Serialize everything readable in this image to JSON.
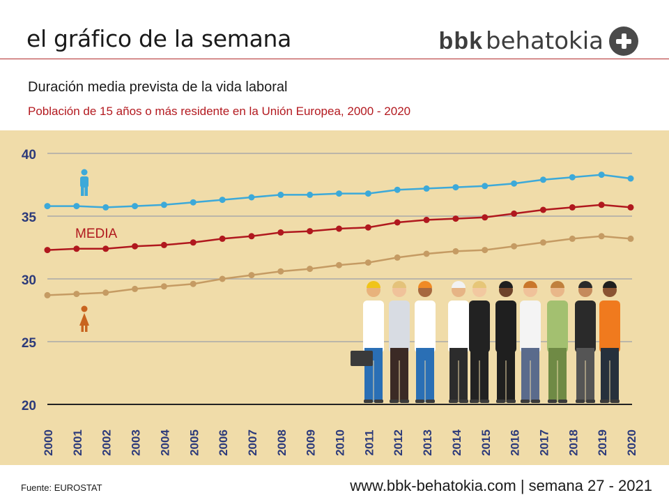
{
  "header": {
    "title": "el gráfico de la semana",
    "brand_bold": "bbk",
    "brand_light": "behatokia"
  },
  "subtitle": "Duración media prevista de la vida laboral",
  "subtitle2": "Población de 15 años o más residente en la Unión Europea, 2000 - 2020",
  "footer": {
    "source": "Fuente:  EUROSTAT",
    "site": "www.bbk-behatokia.com | semana 27 - 2021"
  },
  "colors": {
    "men": "#3ca9d9",
    "media": "#b0181e",
    "women": "#c59b63",
    "axis_labels": "#2c3a7a",
    "grid": "#a9a9a9",
    "background": "#f0dca9"
  },
  "chart_data": {
    "type": "line",
    "title": "Duración media prevista de la vida laboral",
    "xlabel": "",
    "ylabel": "",
    "ylim": [
      20,
      40
    ],
    "yticks": [
      20,
      25,
      30,
      35,
      40
    ],
    "grid": true,
    "annotation": "MEDIA",
    "categories": [
      "2000",
      "2001",
      "2002",
      "2003",
      "2004",
      "2005",
      "2006",
      "2007",
      "2008",
      "2009",
      "2010",
      "2011",
      "2012",
      "2013",
      "2014",
      "2015",
      "2016",
      "2017",
      "2018",
      "2019",
      "2020"
    ],
    "series": [
      {
        "name": "Hombres",
        "icon": "man-icon",
        "color": "#3ca9d9",
        "values": [
          35.8,
          35.8,
          35.7,
          35.8,
          35.9,
          36.1,
          36.3,
          36.5,
          36.7,
          36.7,
          36.8,
          36.8,
          37.1,
          37.2,
          37.3,
          37.4,
          37.6,
          37.9,
          38.1,
          38.3,
          38.0
        ]
      },
      {
        "name": "Media",
        "color": "#b0181e",
        "values": [
          32.3,
          32.4,
          32.4,
          32.6,
          32.7,
          32.9,
          33.2,
          33.4,
          33.7,
          33.8,
          34.0,
          34.1,
          34.5,
          34.7,
          34.8,
          34.9,
          35.2,
          35.5,
          35.7,
          35.9,
          35.7
        ]
      },
      {
        "name": "Mujeres",
        "icon": "woman-icon",
        "color": "#c59b63",
        "values": [
          28.7,
          28.8,
          28.9,
          29.2,
          29.4,
          29.6,
          30.0,
          30.3,
          30.6,
          30.8,
          31.1,
          31.3,
          31.7,
          32.0,
          32.2,
          32.3,
          32.6,
          32.9,
          33.2,
          33.4,
          33.2
        ]
      }
    ]
  }
}
